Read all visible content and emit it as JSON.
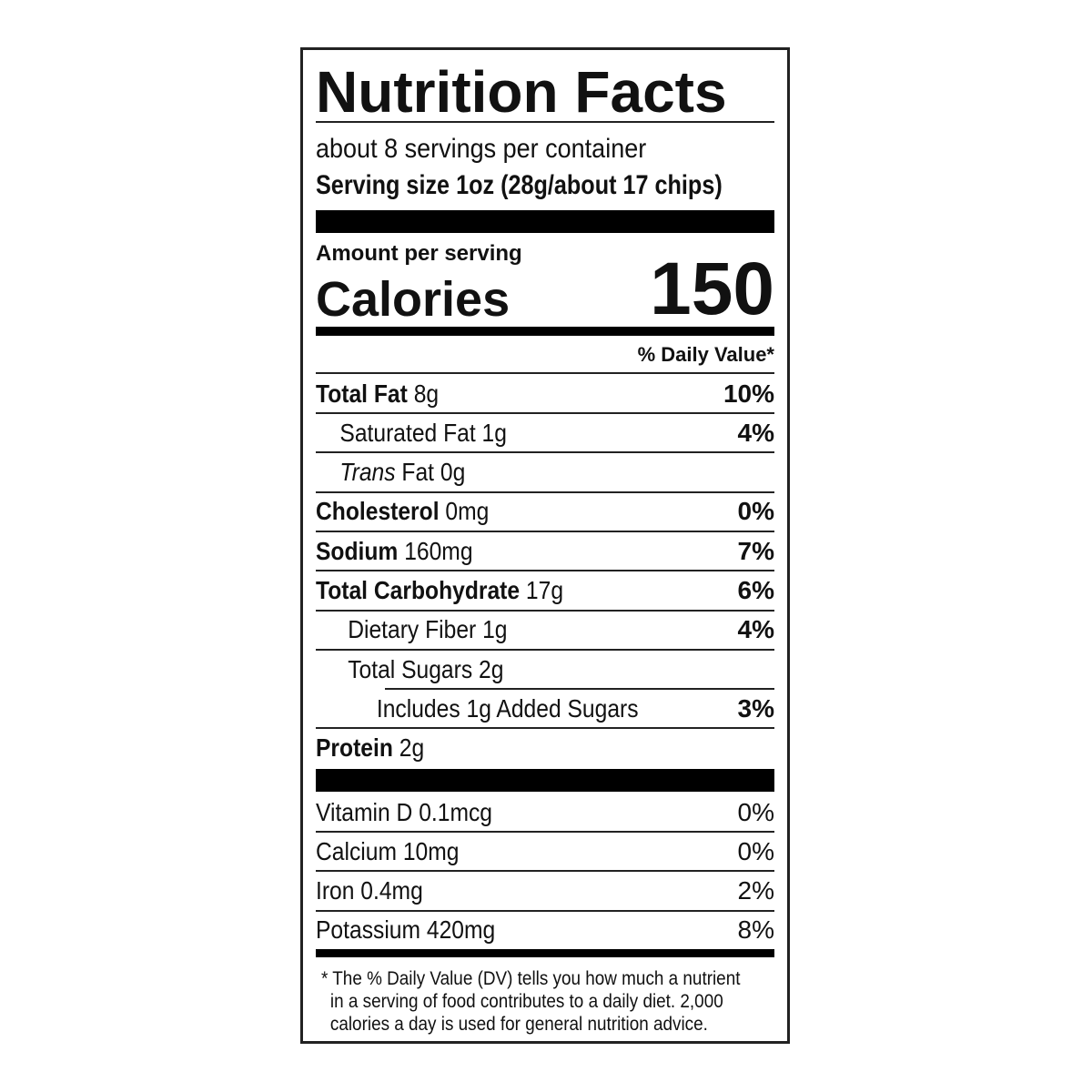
{
  "title": "Nutrition Facts",
  "servings_per_container": "about 8 servings per container",
  "serving_size_label": "Serving size",
  "serving_size_value": "1oz (28g/about 17 chips)",
  "amount_per_serving": "Amount per serving",
  "calories_label": "Calories",
  "calories_value": "150",
  "daily_value_header": "% Daily Value*",
  "nutrients": [
    {
      "name": "Total Fat",
      "amount": "8g",
      "dv": "10%"
    },
    {
      "name": "Saturated Fat",
      "amount": "1g",
      "dv": "4%"
    },
    {
      "name": "Trans",
      "name_suffix": "Fat",
      "amount": "0g",
      "dv": ""
    },
    {
      "name": "Cholesterol",
      "amount": "0mg",
      "dv": "0%"
    },
    {
      "name": "Sodium",
      "amount": "160mg",
      "dv": "7%"
    },
    {
      "name": "Total Carbohydrate",
      "amount": "17g",
      "dv": "6%"
    },
    {
      "name": "Dietary Fiber",
      "amount": "1g",
      "dv": "4%"
    },
    {
      "name": "Total Sugars",
      "amount": "2g",
      "dv": ""
    },
    {
      "name": "Includes 1g Added Sugars",
      "amount": "",
      "dv": "3%"
    },
    {
      "name": "Protein",
      "amount": "2g",
      "dv": ""
    }
  ],
  "vitamins": [
    {
      "name": "Vitamin D",
      "amount": "0.1mcg",
      "dv": "0%"
    },
    {
      "name": "Calcium",
      "amount": "10mg",
      "dv": "0%"
    },
    {
      "name": "Iron",
      "amount": "0.4mg",
      "dv": "2%"
    },
    {
      "name": "Potassium",
      "amount": "420mg",
      "dv": "8%"
    }
  ],
  "footnote": [
    "* The % Daily Value (DV) tells you how much a nutrient",
    "in a serving of food contributes to a daily diet. 2,000",
    "calories a day is used for general nutrition advice."
  ]
}
